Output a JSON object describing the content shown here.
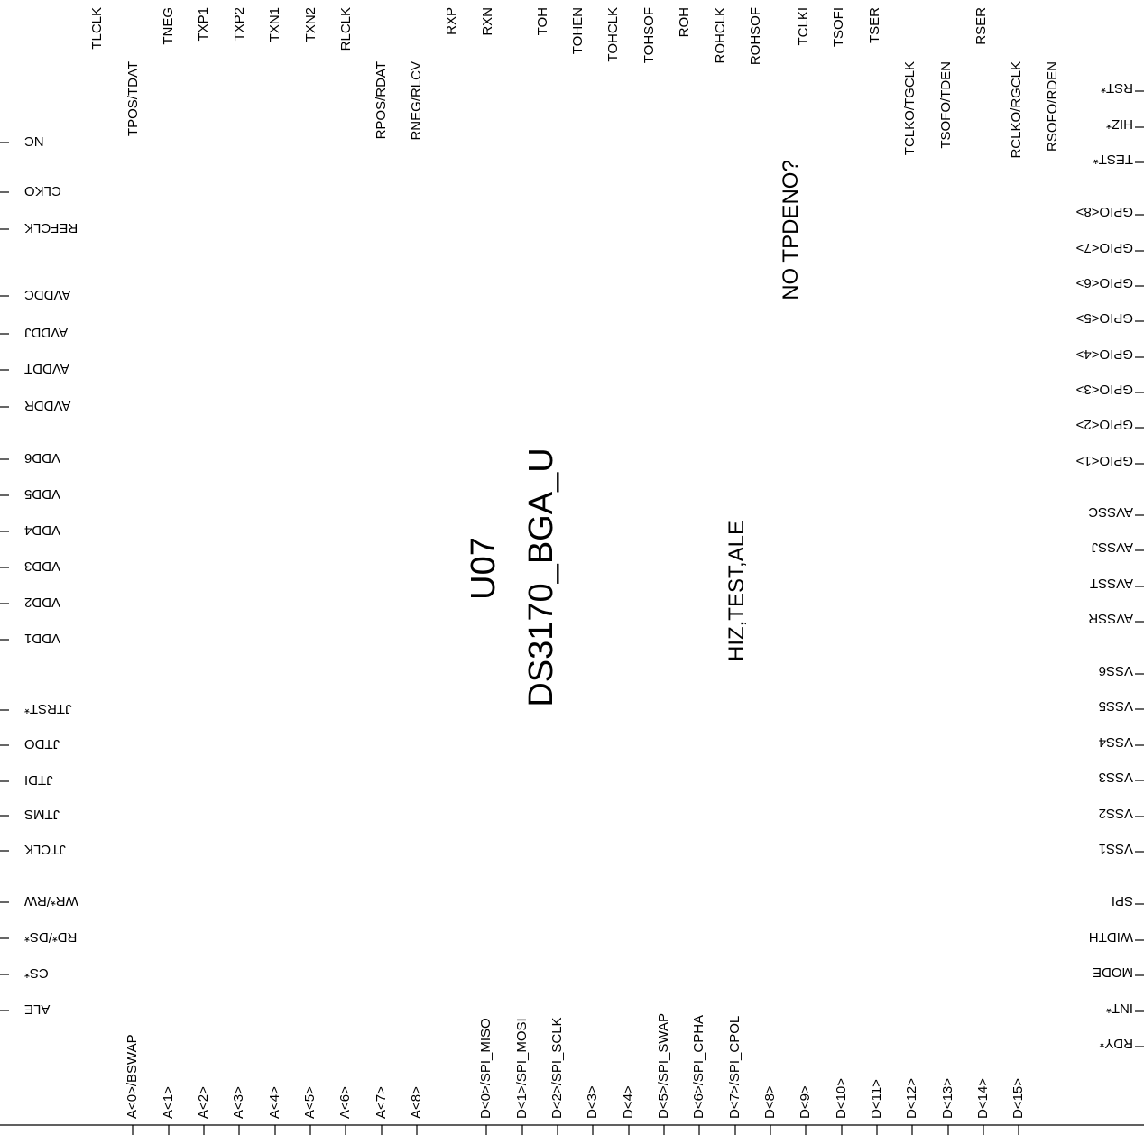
{
  "component": {
    "reference": "U07",
    "part": "DS3170_BGA_U",
    "notes": [
      "NO TPDENO?",
      "HIZ,TEST,ALE"
    ]
  },
  "pins": {
    "top": [
      "TLCLK",
      "TPOS/TDAT",
      "TNEG",
      "TXP1",
      "TXP2",
      "TXN1",
      "TXN2",
      "RLCLK",
      "RPOS/RDAT",
      "RNEG/RLCV",
      "RXP",
      "RXN",
      "TOH",
      "TOHEN",
      "TOHCLK",
      "TOHSOF",
      "ROH",
      "ROHCLK",
      "ROHSOF",
      "TCLKI",
      "TSOFI",
      "TSER",
      "TCLKO/TGCLK",
      "TSOFO/TDEN",
      "RSER",
      "RCLKO/RGCLK",
      "RSOFO/RDEN"
    ],
    "left": [
      "NC",
      "CLKO",
      "REFCLK",
      "AVDDC",
      "AVDDJ",
      "AVDDT",
      "AVDDR",
      "VDD6",
      "VDD5",
      "VDD4",
      "VDD3",
      "VDD2",
      "VDD1",
      "JTRST*",
      "JTDO",
      "JTDI",
      "JTMS",
      "JTCLK",
      "WR*/RW",
      "RD*/DS*",
      "CS*",
      "ALE"
    ],
    "right": [
      "RST*",
      "HIZ*",
      "TEST*",
      "GPIO<8>",
      "GPIO<7>",
      "GPIO<6>",
      "GPIO<5>",
      "GPIO<4>",
      "GPIO<3>",
      "GPIO<2>",
      "GPIO<1>",
      "AVSSC",
      "AVSSJ",
      "AVSST",
      "AVSSR",
      "VSS6",
      "VSS5",
      "VSS4",
      "VSS3",
      "VSS2",
      "VSS1",
      "SPI",
      "WIDTH",
      "MODE",
      "INT*",
      "RDY*"
    ],
    "bottom": [
      "A<0>/BSWAP",
      "A<1>",
      "A<2>",
      "A<3>",
      "A<4>",
      "A<5>",
      "A<6>",
      "A<7>",
      "A<8>",
      "D<0>/SPI_MISO",
      "D<1>/SPI_MOSI",
      "D<2>/SPI_SCLK",
      "D<3>",
      "D<4>",
      "D<5>/SPI_SWAP",
      "D<6>/SPI_CPHA",
      "D<7>/SPI_CPOL",
      "D<8>",
      "D<9>",
      "D<10>",
      "D<11>",
      "D<12>",
      "D<13>",
      "D<14>",
      "D<15>"
    ]
  }
}
